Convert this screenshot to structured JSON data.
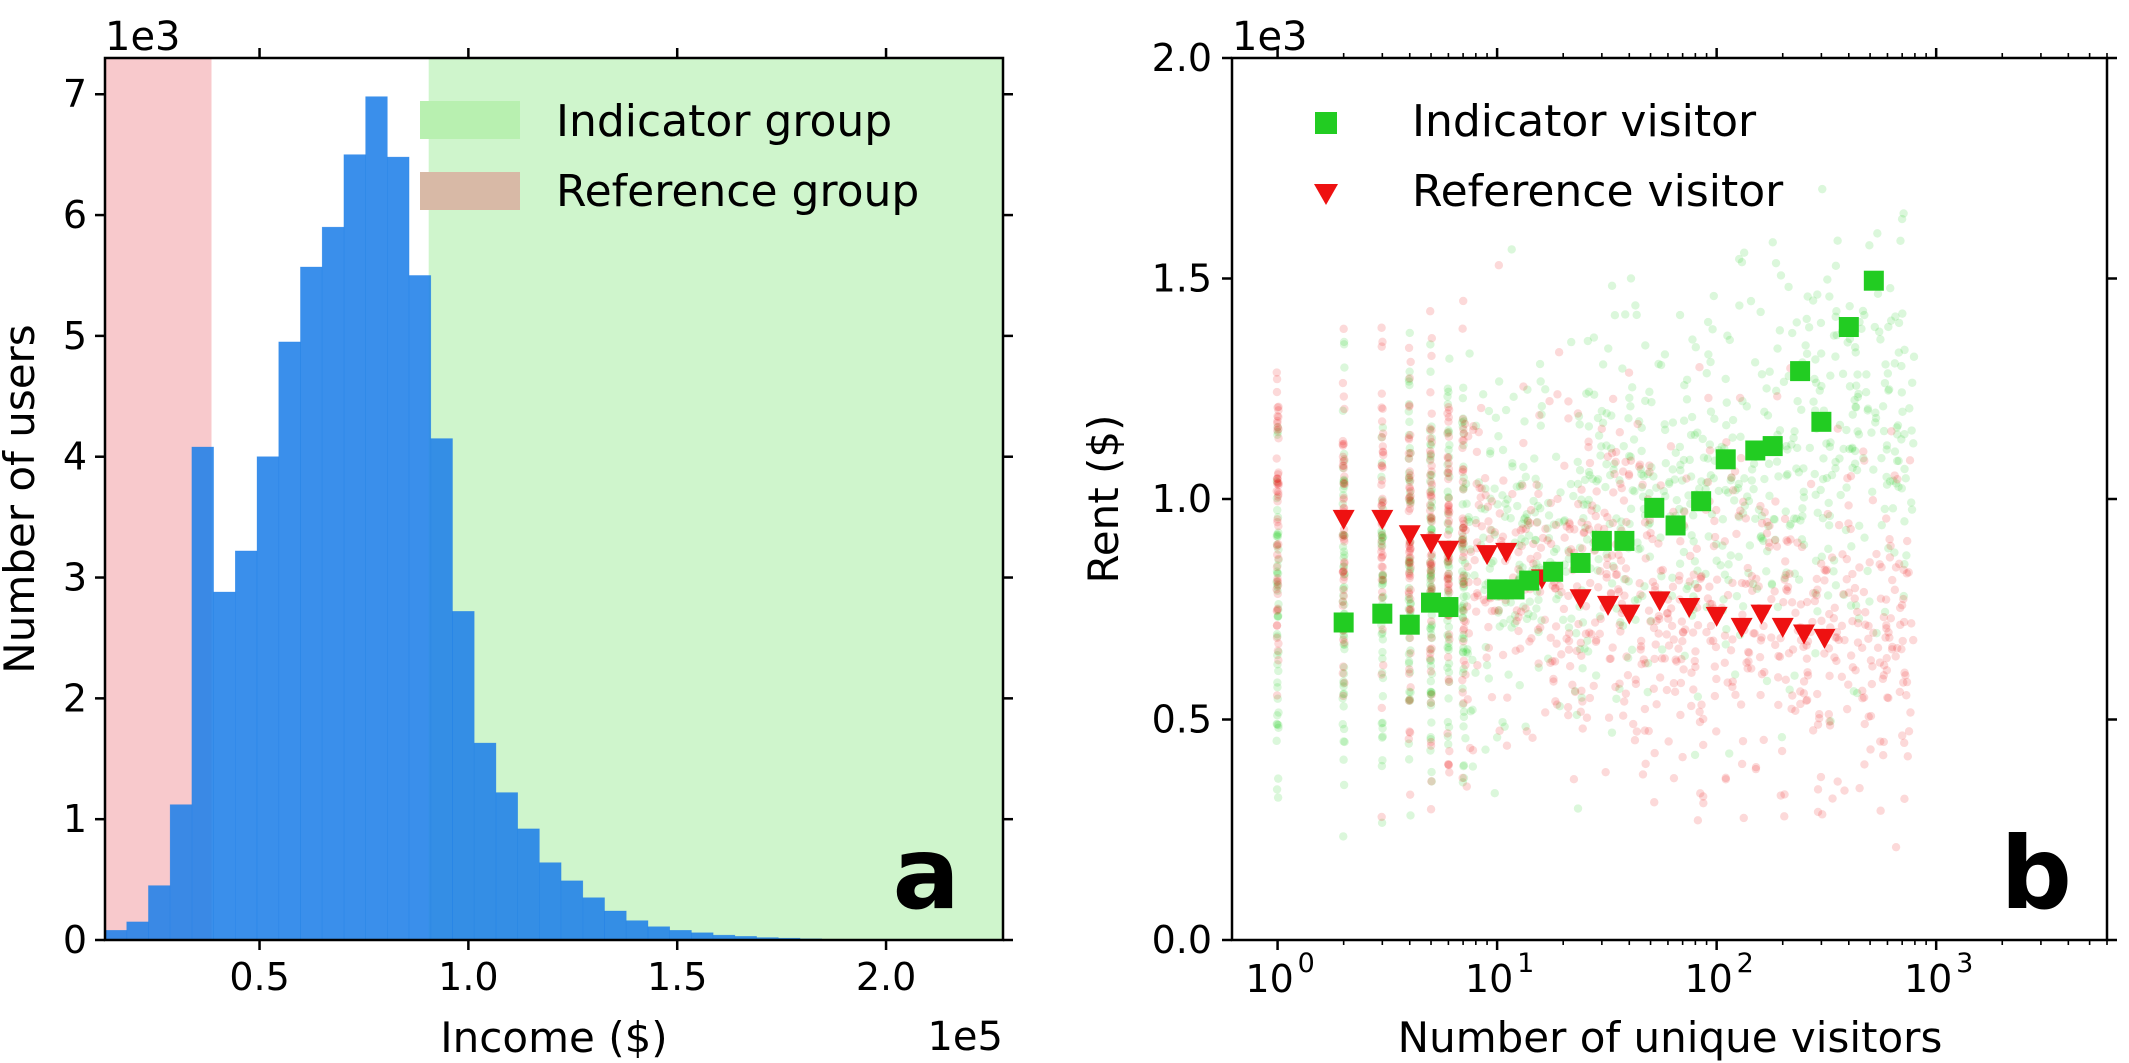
{
  "chart_data": [
    {
      "panel_label": "a",
      "type": "bar",
      "subtype": "histogram",
      "xlabel": "Income ($)",
      "ylabel": "Number of users",
      "x_scale_label": "1e5",
      "y_scale_label": "1e3",
      "xlim": [
        0.13,
        2.28
      ],
      "ylim": [
        0,
        7.3
      ],
      "xticks": [
        0.5,
        1.0,
        1.5,
        2.0
      ],
      "xtick_labels": [
        "0.5",
        "1.0",
        "1.5",
        "2.0"
      ],
      "yticks": [
        0,
        1,
        2,
        3,
        4,
        5,
        6,
        7
      ],
      "ytick_labels": [
        "0",
        "1",
        "2",
        "3",
        "4",
        "5",
        "6",
        "7"
      ],
      "bin_width": 0.052,
      "bin_starts": [
        0.13,
        0.182,
        0.234,
        0.286,
        0.338,
        0.39,
        0.442,
        0.494,
        0.546,
        0.598,
        0.65,
        0.702,
        0.754,
        0.806,
        0.858,
        0.91,
        0.962,
        1.014,
        1.066,
        1.118,
        1.17,
        1.222,
        1.274,
        1.326,
        1.378,
        1.43,
        1.482,
        1.534,
        1.586,
        1.638,
        1.69,
        1.742,
        1.794,
        1.846
      ],
      "values": [
        0.08,
        0.15,
        0.45,
        1.12,
        4.08,
        2.88,
        3.22,
        4.0,
        4.95,
        5.57,
        5.9,
        6.5,
        6.98,
        6.48,
        5.5,
        4.15,
        2.72,
        1.63,
        1.22,
        0.92,
        0.64,
        0.49,
        0.35,
        0.24,
        0.16,
        0.11,
        0.08,
        0.06,
        0.04,
        0.03,
        0.02,
        0.015,
        0.01,
        0.006
      ],
      "bar_color": "#1f7fe8",
      "regions": [
        {
          "name": "Reference group",
          "x_range": [
            0.13,
            0.385
          ],
          "color": "#f8c9cc"
        },
        {
          "name": "Indicator group",
          "x_range": [
            0.905,
            2.28
          ],
          "color": "#cff5cc"
        }
      ],
      "legend": {
        "position": "upper-right",
        "entries": [
          {
            "label": "Indicator group",
            "color": "#b8f0b0"
          },
          {
            "label": "Reference group",
            "color": "#d8b9a6"
          }
        ]
      }
    },
    {
      "panel_label": "b",
      "type": "scatter",
      "xlabel": "Number of unique visitors",
      "ylabel": "Rent ($)",
      "x_scale": "log",
      "y_scale_label": "1e3",
      "xlim": [
        0.62,
        6000
      ],
      "ylim": [
        0,
        2.0
      ],
      "xticks": [
        1,
        10,
        100,
        1000
      ],
      "xtick_labels": [
        "10",
        "10",
        "10",
        "10"
      ],
      "xtick_exponents": [
        "0",
        "1",
        "2",
        "3"
      ],
      "yticks": [
        0.0,
        0.5,
        1.0,
        1.5,
        2.0
      ],
      "ytick_labels": [
        "0.0",
        "0.5",
        "1.0",
        "1.5",
        "2.0"
      ],
      "series": [
        {
          "name": "Indicator visitor",
          "marker": "square",
          "color": "#22cc22",
          "x": [
            2,
            3,
            4,
            5,
            6,
            10,
            12,
            14,
            18,
            24,
            30,
            38,
            52,
            65,
            85,
            110,
            150,
            180,
            240,
            300,
            400,
            520
          ],
          "y": [
            0.72,
            0.74,
            0.715,
            0.765,
            0.755,
            0.795,
            0.795,
            0.815,
            0.835,
            0.855,
            0.905,
            0.905,
            0.98,
            0.94,
            0.995,
            1.09,
            1.11,
            1.12,
            1.29,
            1.175,
            1.39,
            1.495
          ]
        },
        {
          "name": "Reference visitor",
          "marker": "triangle-down",
          "color": "#ee1111",
          "x": [
            2,
            3,
            4,
            5,
            6,
            9,
            11,
            16,
            24,
            32,
            40,
            55,
            75,
            100,
            130,
            160,
            200,
            250,
            310
          ],
          "y": [
            0.955,
            0.955,
            0.92,
            0.9,
            0.885,
            0.875,
            0.88,
            0.82,
            0.775,
            0.76,
            0.74,
            0.77,
            0.755,
            0.735,
            0.71,
            0.74,
            0.71,
            0.695,
            0.685
          ]
        }
      ],
      "background_cloud": {
        "description_ids": [
          "indicator-cloud",
          "reference-cloud"
        ],
        "indicator_color": "#22cc22",
        "reference_color": "#ee1111"
      },
      "legend": {
        "position": "upper-left",
        "entries": [
          {
            "label": "Indicator visitor",
            "marker": "square",
            "color": "#22cc22"
          },
          {
            "label": "Reference visitor",
            "marker": "triangle-down",
            "color": "#ee1111"
          }
        ]
      }
    }
  ]
}
